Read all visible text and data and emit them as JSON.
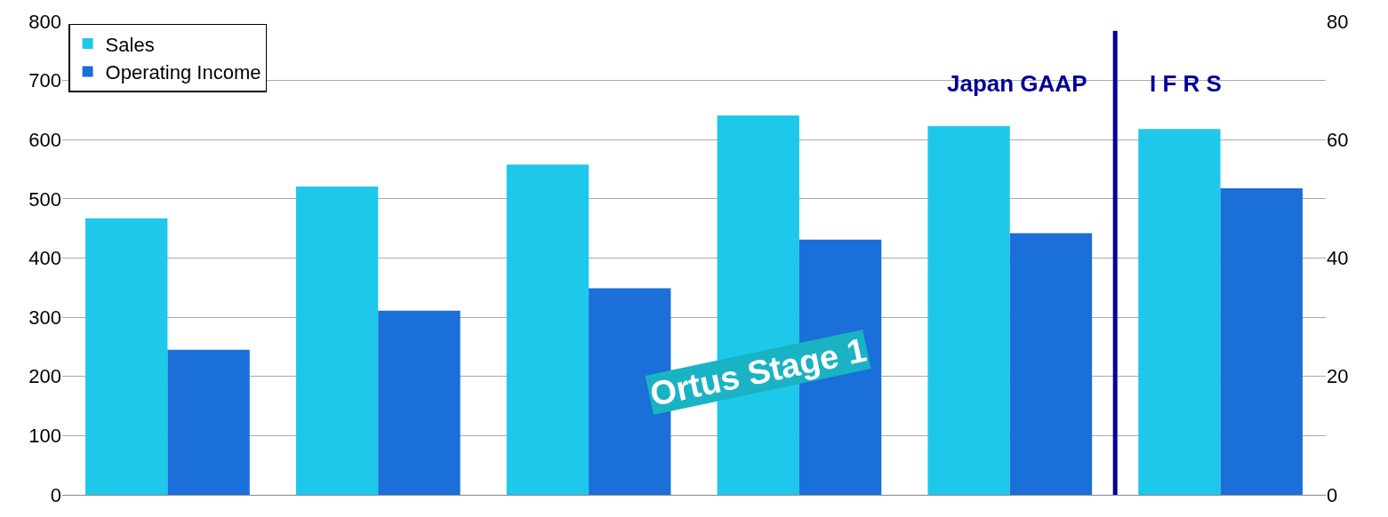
{
  "chart_data": {
    "type": "bar",
    "categories": [
      null,
      null,
      null,
      null,
      null,
      null
    ],
    "series": [
      {
        "name": "Sales",
        "color": "#1ec8ea",
        "values": [
          467,
          521,
          558,
          641,
          623,
          618
        ]
      },
      {
        "name": "Operating Income",
        "color": "#1a6fd8",
        "values": [
          24.5,
          31.1,
          34.9,
          43.1,
          44.2,
          51.8
        ],
        "axis": "y2"
      }
    ],
    "ylim": [
      0,
      800
    ],
    "yticks": [
      0,
      100,
      200,
      300,
      400,
      500,
      600,
      700,
      800
    ],
    "y2lim": [
      0,
      80
    ],
    "y2ticks": [
      0,
      20,
      40,
      60,
      80
    ],
    "grid": "y",
    "legend": "top left",
    "annotations": [
      "Japan GAAP",
      "I F R S",
      "Ortus Stage 1"
    ]
  }
}
